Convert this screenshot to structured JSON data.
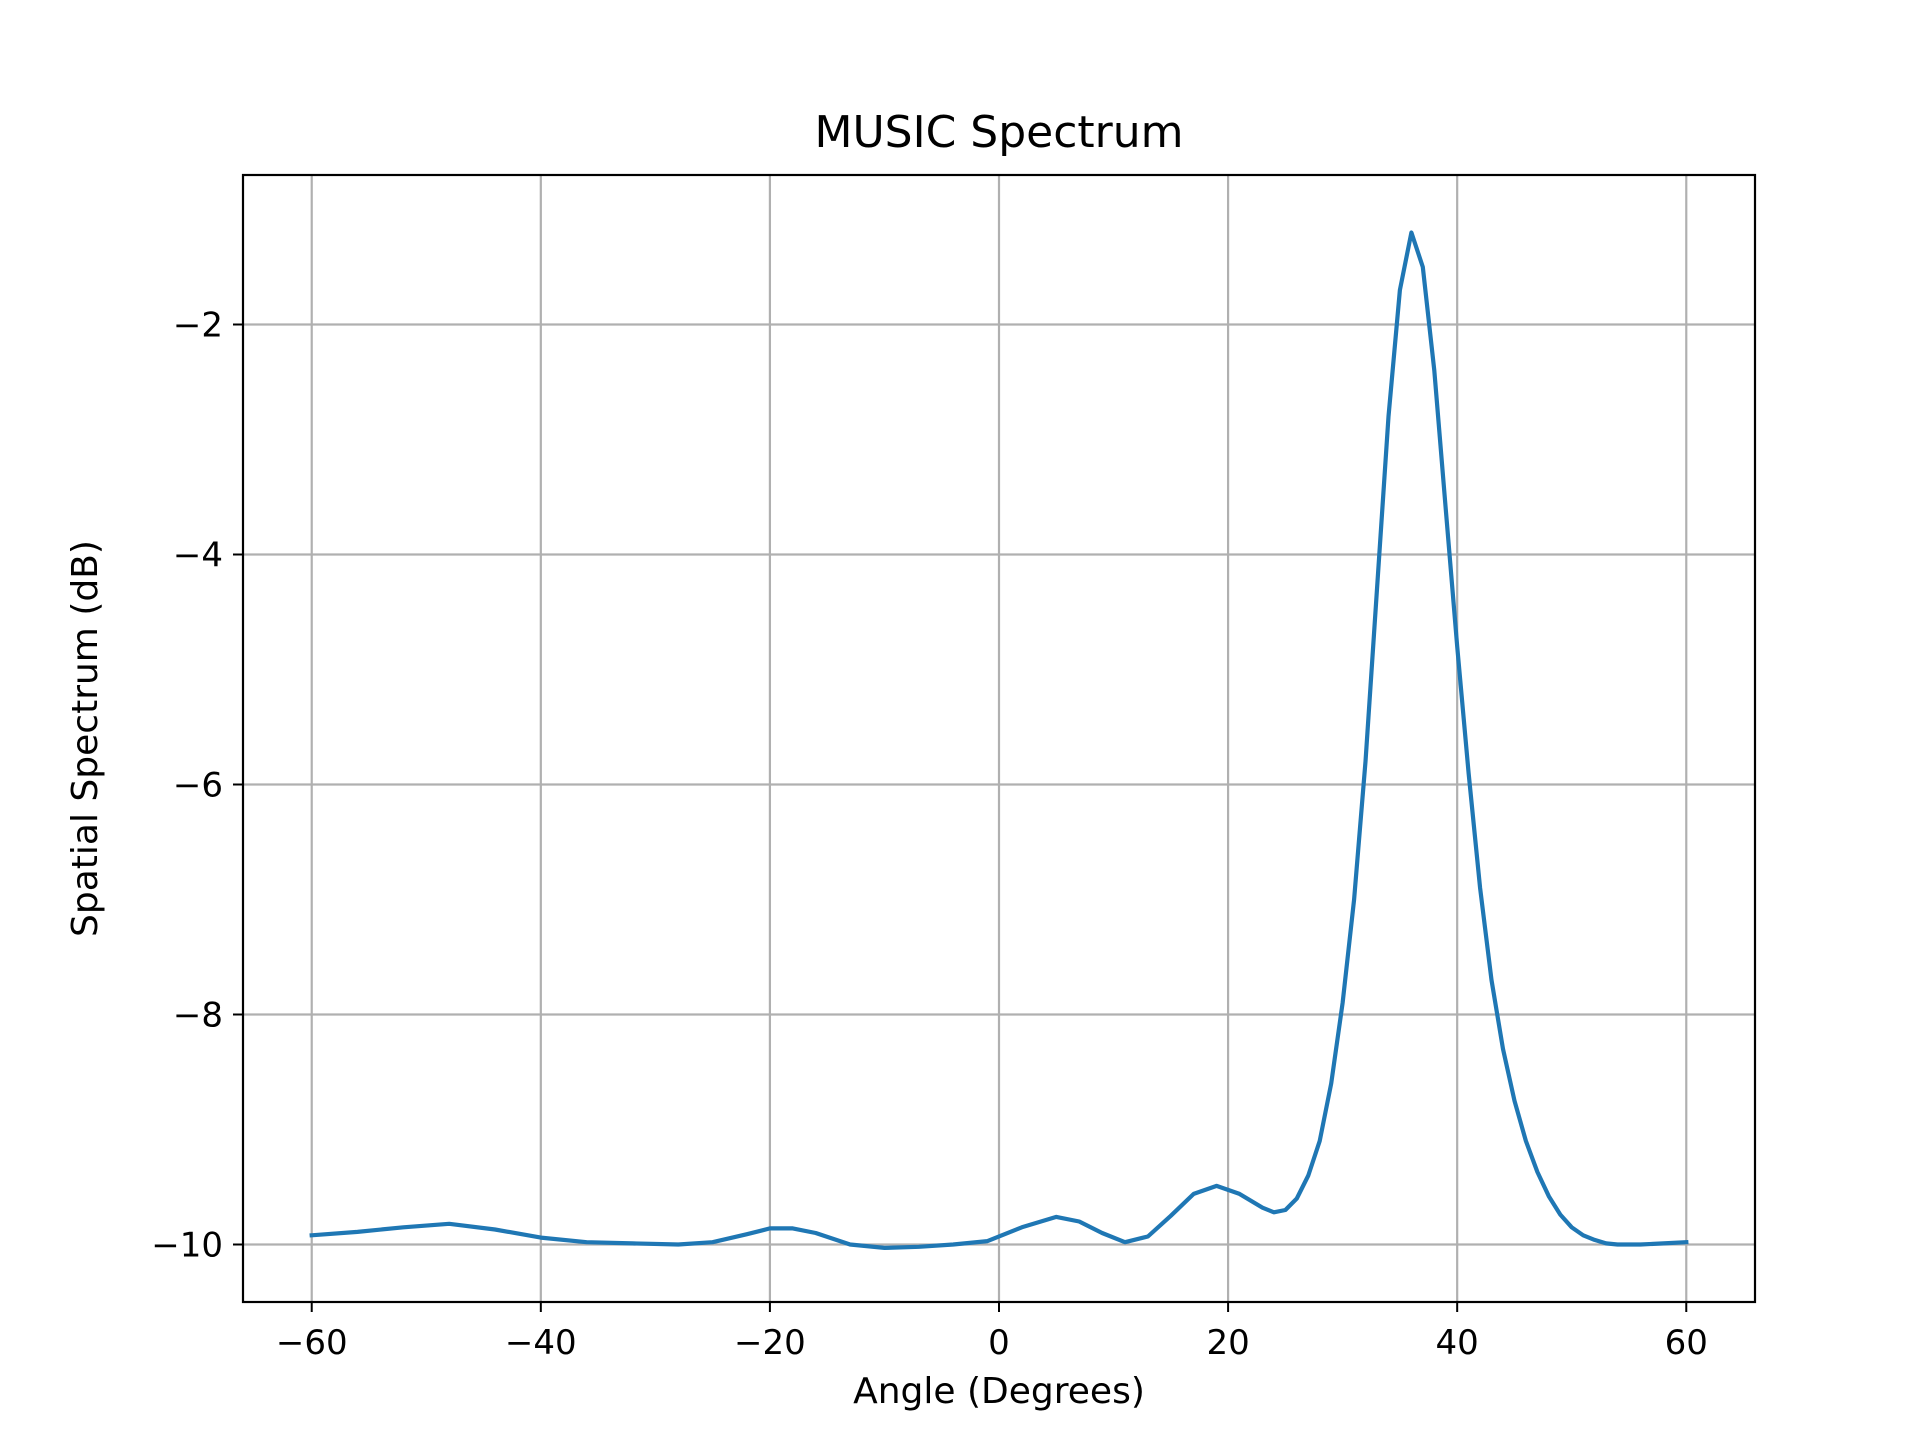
{
  "chart_data": {
    "type": "line",
    "title": "MUSIC Spectrum",
    "xlabel": "Angle (Degrees)",
    "ylabel": "Spatial Spectrum (dB)",
    "xlim": [
      -66,
      66
    ],
    "ylim": [
      -10.5,
      -0.7
    ],
    "xticks": [
      -60,
      -40,
      -20,
      0,
      20,
      40,
      60
    ],
    "xtick_labels": [
      "−60",
      "−40",
      "−20",
      "0",
      "20",
      "40",
      "60"
    ],
    "yticks": [
      -10,
      -8,
      -6,
      -4,
      -2
    ],
    "ytick_labels": [
      "−10",
      "−8",
      "−6",
      "−4",
      "−2"
    ],
    "grid": true,
    "colors": {
      "line": "#1f77b4",
      "grid": "#b0b0b0",
      "axes": "#000000"
    },
    "series": [
      {
        "x": [
          -60,
          -56,
          -52,
          -48,
          -44,
          -40,
          -36,
          -32,
          -28,
          -25,
          -22,
          -20,
          -18,
          -16,
          -13,
          -10,
          -7,
          -4,
          -1,
          2,
          5,
          7,
          9,
          11,
          13,
          15,
          17,
          19,
          21,
          23,
          24,
          25,
          26,
          27,
          28,
          29,
          30,
          31,
          32,
          33,
          34,
          35,
          36,
          37,
          38,
          39,
          40,
          41,
          42,
          43,
          44,
          45,
          46,
          47,
          48,
          49,
          50,
          51,
          52,
          53,
          54,
          56,
          58,
          60
        ],
        "y": [
          -9.92,
          -9.89,
          -9.85,
          -9.82,
          -9.87,
          -9.94,
          -9.98,
          -9.99,
          -10.0,
          -9.98,
          -9.91,
          -9.86,
          -9.86,
          -9.9,
          -10.0,
          -10.03,
          -10.02,
          -10.0,
          -9.97,
          -9.85,
          -9.76,
          -9.8,
          -9.9,
          -9.98,
          -9.93,
          -9.75,
          -9.56,
          -9.49,
          -9.56,
          -9.68,
          -9.72,
          -9.7,
          -9.6,
          -9.4,
          -9.1,
          -8.6,
          -7.9,
          -7.0,
          -5.8,
          -4.3,
          -2.8,
          -1.7,
          -1.2,
          -1.5,
          -2.4,
          -3.6,
          -4.8,
          -5.9,
          -6.9,
          -7.7,
          -8.3,
          -8.75,
          -9.1,
          -9.37,
          -9.58,
          -9.74,
          -9.85,
          -9.92,
          -9.96,
          -9.99,
          -10.0,
          -10.0,
          -9.99,
          -9.98
        ]
      }
    ]
  }
}
